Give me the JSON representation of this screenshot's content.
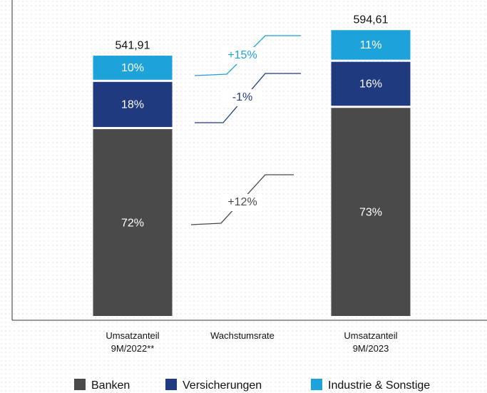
{
  "chart_data": {
    "type": "bar",
    "categories": [
      "Umsatzanteil 9M/2022**",
      "Umsatzanteil 9M/2023"
    ],
    "totals": [
      541.91,
      594.61
    ],
    "total_labels": [
      "541,91",
      "594,61"
    ],
    "series": [
      {
        "name": "Banken",
        "color": "#4a4a4a",
        "values": [
          72,
          73
        ],
        "value_labels": [
          "72%",
          "73%"
        ]
      },
      {
        "name": "Versicherungen",
        "color": "#1f3a7e",
        "values": [
          18,
          16
        ],
        "value_labels": [
          "18%",
          "16%"
        ]
      },
      {
        "name": "Industrie & Sonstige",
        "color": "#1ea2da",
        "values": [
          10,
          11
        ],
        "value_labels": [
          "10%",
          "11%"
        ]
      }
    ],
    "growth": {
      "label": "Wachstumsrate",
      "values": [
        12,
        -1,
        15
      ],
      "value_labels": [
        "+12%",
        "-1%",
        "+15%"
      ]
    }
  }
}
